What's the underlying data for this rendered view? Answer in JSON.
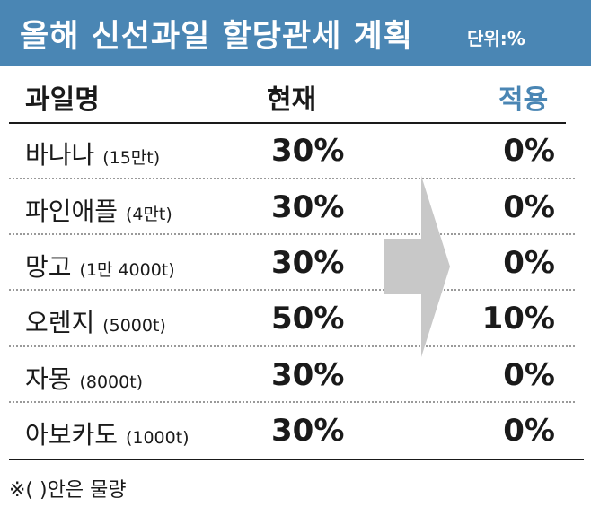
{
  "header": {
    "title": "올해 신선과일 할당관세 계획",
    "unit": "단위:%"
  },
  "columns": {
    "name": "과일명",
    "current": "현재",
    "applied": "적용"
  },
  "rows": [
    {
      "name": "바나나",
      "amount": "(15만t)",
      "current": "30%",
      "applied": "0%"
    },
    {
      "name": "파인애플",
      "amount": "(4만t)",
      "current": "30%",
      "applied": "0%"
    },
    {
      "name": "망고",
      "amount": "(1만 4000t)",
      "current": "30%",
      "applied": "0%"
    },
    {
      "name": "오렌지",
      "amount": "(5000t)",
      "current": "50%",
      "applied": "10%"
    },
    {
      "name": "자몽",
      "amount": "(8000t)",
      "current": "30%",
      "applied": "0%"
    },
    {
      "name": "아보카도",
      "amount": "(1000t)",
      "current": "30%",
      "applied": "0%"
    }
  ],
  "footnote": "※( )안은 물량",
  "colors": {
    "header_bg": "#4a86b4",
    "accent": "#4a86b4",
    "arrow": "#c8c8c8"
  },
  "icons": {
    "arrow": "right-arrow-icon"
  }
}
